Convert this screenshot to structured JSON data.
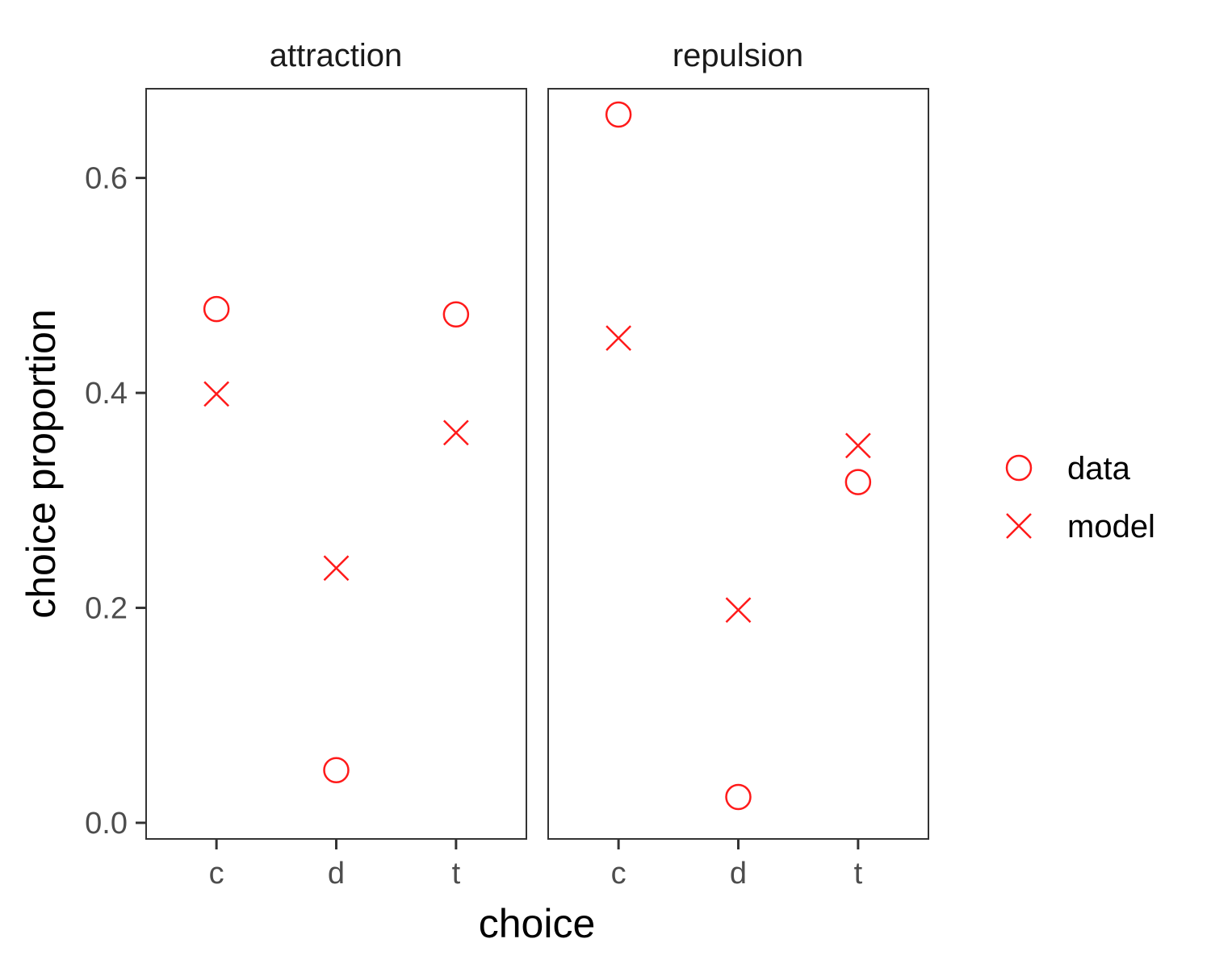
{
  "chart_data": {
    "type": "scatter",
    "facets": [
      "attraction",
      "repulsion"
    ],
    "categories": [
      "c",
      "d",
      "t"
    ],
    "xlabel": "choice",
    "ylabel": "choice proportion",
    "ylim": [
      -0.015,
      0.683
    ],
    "yticks": [
      0.0,
      0.2,
      0.4,
      0.6
    ],
    "ytick_labels": [
      "0.0",
      "0.2",
      "0.4",
      "0.6"
    ],
    "grid": false,
    "legend_position": "right",
    "marker_color": "#FF1A1A",
    "series": [
      {
        "name": "data",
        "marker": "circle",
        "values": {
          "attraction": [
            0.478,
            0.049,
            0.473
          ],
          "repulsion": [
            0.659,
            0.024,
            0.317
          ]
        }
      },
      {
        "name": "model",
        "marker": "x",
        "values": {
          "attraction": [
            0.399,
            0.237,
            0.363
          ],
          "repulsion": [
            0.451,
            0.198,
            0.351
          ]
        }
      }
    ]
  }
}
